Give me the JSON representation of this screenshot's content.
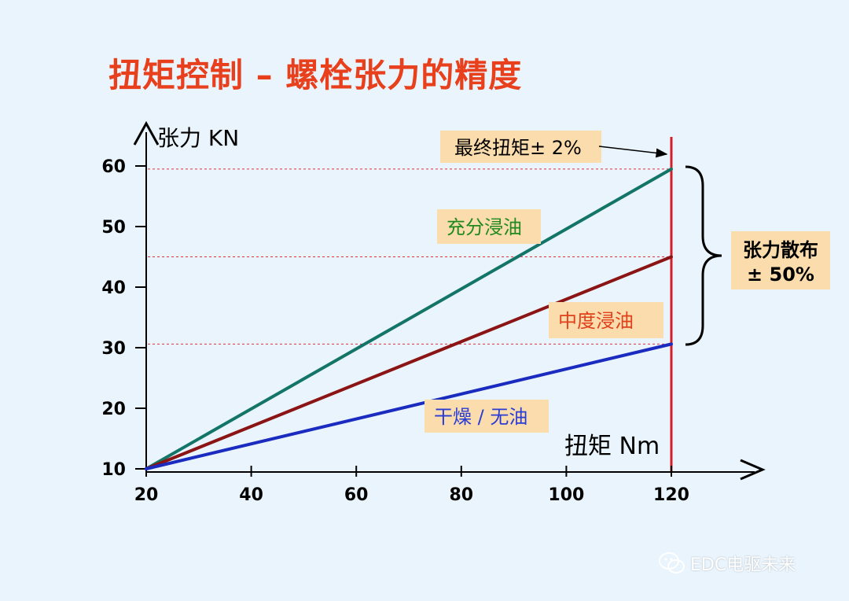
{
  "page": {
    "title": "扭矩控制 – 螺栓张力的精度",
    "watermark": "EDC电驱未来"
  },
  "colors": {
    "background": "#eaf4fc",
    "title": "#e8401c",
    "axis": "#000000",
    "label_box": "#fbdcac",
    "final_torque_line": "#d41f2a",
    "guide_lines": "#e0303a"
  },
  "chart_data": {
    "type": "line",
    "xlabel": "扭矩 Nm",
    "ylabel": "张力 KN",
    "xlim": [
      20,
      120
    ],
    "ylim": [
      10,
      60
    ],
    "x_ticks": [
      20,
      40,
      60,
      80,
      100,
      120
    ],
    "y_ticks": [
      10,
      20,
      30,
      40,
      50,
      60
    ],
    "grid": false,
    "series": [
      {
        "name": "充分浸油",
        "color": "#137567",
        "x": [
          20,
          120
        ],
        "y": [
          10,
          59.5
        ]
      },
      {
        "name": "中度浸油",
        "color": "#8b1414",
        "x": [
          20,
          120
        ],
        "y": [
          10,
          45
        ]
      },
      {
        "name": "干燥 / 无油",
        "color": "#1a2bc0",
        "x": [
          20,
          120
        ],
        "y": [
          10,
          30.6
        ]
      }
    ],
    "series_label_colors": [
      "#1f8a1f",
      "#e0401a",
      "#2a3cd6"
    ],
    "reference_lines": {
      "vertical_x": 120,
      "horizontal_y": [
        59.5,
        45,
        30.6
      ]
    },
    "annotations": {
      "final_torque": "最终扭矩± 2%",
      "spread_line1": "张力散布",
      "spread_line2": "± 50%"
    }
  }
}
